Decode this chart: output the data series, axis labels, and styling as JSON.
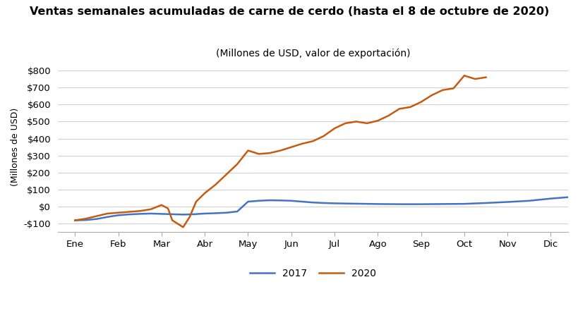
{
  "title": "Ventas semanales acumuladas de carne de cerdo (hasta el 8 de octubre de 2020)",
  "subtitle": "(Millones de USD, valor de exportación)",
  "ylabel": "(Millones de USD)",
  "x_labels": [
    "Ene",
    "Feb",
    "Mar",
    "Abr",
    "May",
    "Jun",
    "Jul",
    "Ago",
    "Sep",
    "Oct",
    "Nov",
    "Dic"
  ],
  "ylim": [
    -150,
    850
  ],
  "yticks": [
    -100,
    0,
    100,
    200,
    300,
    400,
    500,
    600,
    700,
    800
  ],
  "series_2017": {
    "label": "2017",
    "color": "#4472C4",
    "x": [
      0,
      0.25,
      0.5,
      0.75,
      1.0,
      1.25,
      1.5,
      1.75,
      2.0,
      2.25,
      2.5,
      2.75,
      3.0,
      3.25,
      3.5,
      3.75,
      4.0,
      4.25,
      4.5,
      4.75,
      5.0,
      5.25,
      5.5,
      5.75,
      6.0,
      6.5,
      7.0,
      7.5,
      8.0,
      8.5,
      9.0,
      9.5,
      10.0,
      10.5,
      11.0,
      11.5
    ],
    "y": [
      -80,
      -78,
      -72,
      -60,
      -50,
      -45,
      -42,
      -40,
      -42,
      -44,
      -46,
      -44,
      -40,
      -38,
      -35,
      -28,
      30,
      35,
      38,
      37,
      35,
      30,
      25,
      22,
      20,
      18,
      16,
      15,
      15,
      16,
      17,
      22,
      28,
      35,
      48,
      58
    ]
  },
  "series_2020": {
    "label": "2020",
    "color": "#C55A11",
    "x": [
      0,
      0.25,
      0.5,
      0.75,
      1.0,
      1.25,
      1.5,
      1.75,
      2.0,
      2.15,
      2.25,
      2.5,
      2.65,
      2.8,
      3.0,
      3.25,
      3.5,
      3.75,
      4.0,
      4.25,
      4.5,
      4.75,
      5.0,
      5.25,
      5.5,
      5.75,
      6.0,
      6.25,
      6.5,
      6.75,
      7.0,
      7.25,
      7.5,
      7.75,
      8.0,
      8.25,
      8.5,
      8.75,
      9.0,
      9.25,
      9.5
    ],
    "y": [
      -80,
      -70,
      -55,
      -40,
      -35,
      -30,
      -25,
      -15,
      10,
      -10,
      -80,
      -120,
      -60,
      30,
      80,
      130,
      190,
      250,
      330,
      310,
      315,
      330,
      350,
      370,
      385,
      415,
      460,
      490,
      500,
      490,
      505,
      535,
      575,
      585,
      615,
      655,
      685,
      695,
      770,
      750,
      760
    ]
  },
  "background_color": "#ffffff",
  "grid_color": "#d0d0d0",
  "title_fontsize": 11.5,
  "subtitle_fontsize": 10,
  "ylabel_fontsize": 9,
  "tick_fontsize": 9.5,
  "legend_fontsize": 10
}
